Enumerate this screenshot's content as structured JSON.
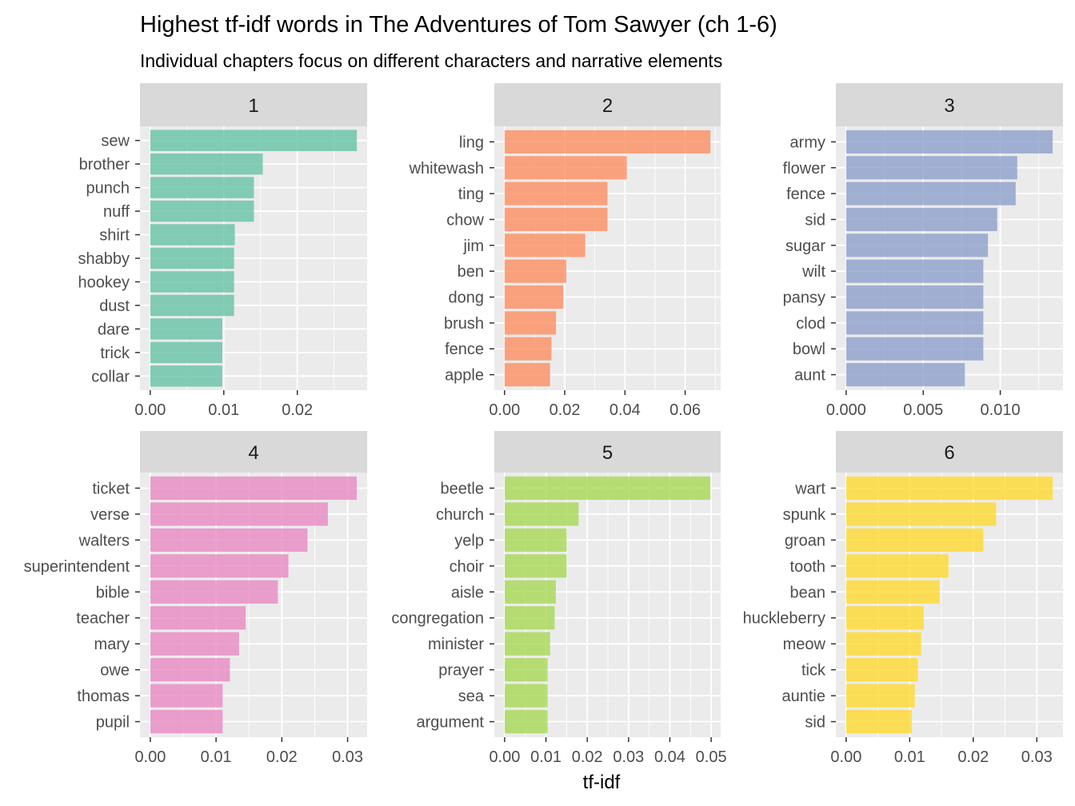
{
  "title": "Highest tf-idf words in The Adventures of Tom Sawyer (ch 1-6)",
  "subtitle": "Individual chapters focus on different characters and narrative elements",
  "xlabel": "tf-idf",
  "colors": {
    "panel_bg": "#ebebeb",
    "strip_bg": "#d9d9d9",
    "grid": "#ffffff",
    "1": "#66c2a5",
    "2": "#fc8d62",
    "3": "#8da0cb",
    "4": "#e78ac3",
    "5": "#a6d854",
    "6": "#ffd92f"
  },
  "chart_data": [
    {
      "type": "bar",
      "orientation": "horizontal",
      "facet": "1",
      "categories": [
        "sew",
        "brother",
        "punch",
        "nuff",
        "shirt",
        "shabby",
        "hookey",
        "dust",
        "dare",
        "trick",
        "collar"
      ],
      "values": [
        0.0281,
        0.0153,
        0.0141,
        0.0141,
        0.0115,
        0.0114,
        0.0114,
        0.0114,
        0.0098,
        0.0098,
        0.0098
      ],
      "xlim": [
        -0.0014,
        0.0295
      ],
      "xticks": [
        0.0,
        0.01,
        0.02
      ],
      "xtick_labels": [
        "0.00",
        "0.01",
        "0.02"
      ]
    },
    {
      "type": "bar",
      "orientation": "horizontal",
      "facet": "2",
      "categories": [
        "ling",
        "whitewash",
        "ting",
        "chow",
        "jim",
        "ben",
        "dong",
        "brush",
        "fence",
        "apple"
      ],
      "values": [
        0.0684,
        0.0406,
        0.0342,
        0.0342,
        0.0268,
        0.0205,
        0.0195,
        0.0171,
        0.0156,
        0.0151
      ],
      "xlim": [
        -0.0034,
        0.0718
      ],
      "xticks": [
        0.0,
        0.02,
        0.04,
        0.06
      ],
      "xtick_labels": [
        "0.00",
        "0.02",
        "0.04",
        "0.06"
      ]
    },
    {
      "type": "bar",
      "orientation": "horizontal",
      "facet": "3",
      "categories": [
        "army",
        "flower",
        "fence",
        "sid",
        "sugar",
        "wilt",
        "pansy",
        "clod",
        "bowl",
        "aunt"
      ],
      "values": [
        0.0134,
        0.0111,
        0.011,
        0.0098,
        0.0092,
        0.0089,
        0.0089,
        0.0089,
        0.0089,
        0.0077
      ],
      "xlim": [
        -0.00067,
        0.01407
      ],
      "xticks": [
        0.0,
        0.005,
        0.01
      ],
      "xtick_labels": [
        "0.000",
        "0.005",
        "0.010"
      ]
    },
    {
      "type": "bar",
      "orientation": "horizontal",
      "facet": "4",
      "categories": [
        "ticket",
        "verse",
        "walters",
        "superintendent",
        "bible",
        "teacher",
        "mary",
        "owe",
        "thomas",
        "pupil"
      ],
      "values": [
        0.0314,
        0.027,
        0.0239,
        0.021,
        0.0194,
        0.0145,
        0.0135,
        0.0121,
        0.011,
        0.011
      ],
      "xlim": [
        -0.00157,
        0.03297
      ],
      "xticks": [
        0.0,
        0.01,
        0.02,
        0.03
      ],
      "xtick_labels": [
        "0.00",
        "0.01",
        "0.02",
        "0.03"
      ]
    },
    {
      "type": "bar",
      "orientation": "horizontal",
      "facet": "5",
      "categories": [
        "beetle",
        "church",
        "yelp",
        "choir",
        "aisle",
        "congregation",
        "minister",
        "prayer",
        "sea",
        "argument"
      ],
      "values": [
        0.0498,
        0.0179,
        0.015,
        0.015,
        0.0124,
        0.0121,
        0.011,
        0.0104,
        0.0104,
        0.0104
      ],
      "xlim": [
        -0.0025,
        0.0523
      ],
      "xticks": [
        0.0,
        0.01,
        0.02,
        0.03,
        0.04,
        0.05
      ],
      "xtick_labels": [
        "0.00",
        "0.01",
        "0.02",
        "0.03",
        "0.04",
        "0.05"
      ]
    },
    {
      "type": "bar",
      "orientation": "horizontal",
      "facet": "6",
      "categories": [
        "wart",
        "spunk",
        "groan",
        "tooth",
        "bean",
        "huckleberry",
        "meow",
        "tick",
        "auntie",
        "sid"
      ],
      "values": [
        0.0325,
        0.0236,
        0.0216,
        0.0161,
        0.0147,
        0.0122,
        0.0118,
        0.0113,
        0.0108,
        0.0103
      ],
      "xlim": [
        -0.00162,
        0.03412
      ],
      "xticks": [
        0.0,
        0.01,
        0.02,
        0.03
      ],
      "xtick_labels": [
        "0.00",
        "0.01",
        "0.02",
        "0.03"
      ]
    }
  ]
}
